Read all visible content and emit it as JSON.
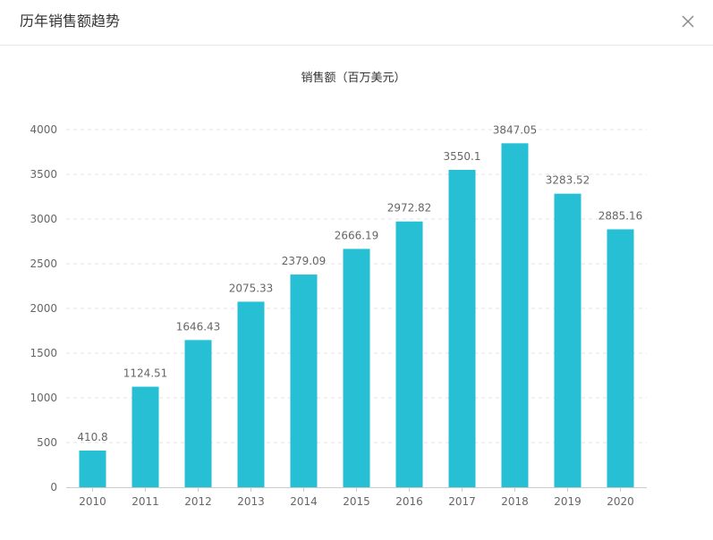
{
  "dialog": {
    "title": "历年销售额趋势",
    "close_icon": "close-icon"
  },
  "colors": {
    "bar": "#26bfd4",
    "grid": "#e3e3e3",
    "axis": "#999999",
    "text": "#666666"
  },
  "chart_data": {
    "type": "bar",
    "title": "销售额（百万美元）",
    "xlabel": "",
    "ylabel": "",
    "categories": [
      "2010",
      "2011",
      "2012",
      "2013",
      "2014",
      "2015",
      "2016",
      "2017",
      "2018",
      "2019",
      "2020"
    ],
    "values": [
      410.8,
      1124.51,
      1646.43,
      2075.33,
      2379.09,
      2666.19,
      2972.82,
      3550.1,
      3847.05,
      3283.52,
      2885.16
    ],
    "ylim": [
      0,
      4000
    ],
    "yticks": [
      0,
      500,
      1000,
      1500,
      2000,
      2500,
      3000,
      3500,
      4000
    ],
    "grid": true,
    "data_labels": true,
    "legend": "none"
  }
}
